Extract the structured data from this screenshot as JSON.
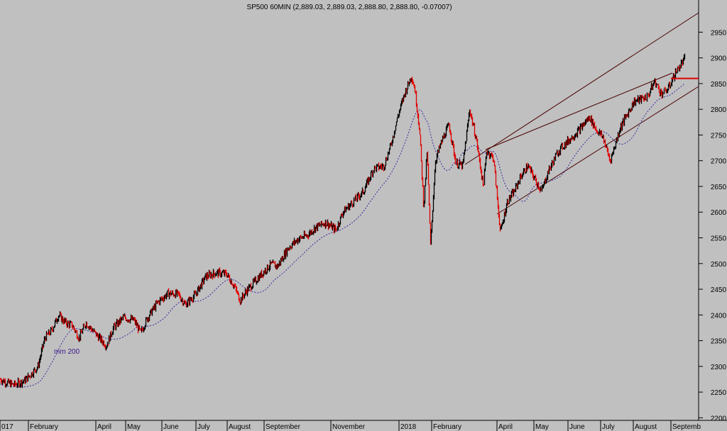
{
  "chart_data": {
    "type": "candlestick",
    "title": "SP500 60MIN (2,889.03, 2,889.03, 2,888.80, 2,888.80, -0.07007)",
    "y_ticks": [
      2200,
      2250,
      2300,
      2350,
      2400,
      2450,
      2500,
      2550,
      2600,
      2650,
      2700,
      2750,
      2800,
      2850,
      2900,
      2950
    ],
    "ylim": [
      2195,
      2985
    ],
    "x_labels": [
      "017",
      "February",
      "April",
      "May",
      "June",
      "July",
      "August",
      "September",
      "November",
      "2018",
      "February",
      "April",
      "May",
      "June",
      "July",
      "August",
      "Septemb"
    ],
    "ma_label": "mm 200",
    "support_level": 2860,
    "price_path": [
      [
        0.0,
        2275
      ],
      [
        0.01,
        2268
      ],
      [
        0.02,
        2264
      ],
      [
        0.035,
        2272
      ],
      [
        0.045,
        2285
      ],
      [
        0.055,
        2300
      ],
      [
        0.065,
        2355
      ],
      [
        0.075,
        2370
      ],
      [
        0.085,
        2400
      ],
      [
        0.095,
        2385
      ],
      [
        0.105,
        2380
      ],
      [
        0.115,
        2355
      ],
      [
        0.125,
        2385
      ],
      [
        0.14,
        2362
      ],
      [
        0.155,
        2340
      ],
      [
        0.165,
        2375
      ],
      [
        0.18,
        2395
      ],
      [
        0.195,
        2390
      ],
      [
        0.205,
        2365
      ],
      [
        0.215,
        2395
      ],
      [
        0.23,
        2425
      ],
      [
        0.245,
        2442
      ],
      [
        0.26,
        2440
      ],
      [
        0.27,
        2420
      ],
      [
        0.285,
        2440
      ],
      [
        0.3,
        2475
      ],
      [
        0.315,
        2482
      ],
      [
        0.33,
        2480
      ],
      [
        0.342,
        2455
      ],
      [
        0.35,
        2428
      ],
      [
        0.36,
        2448
      ],
      [
        0.375,
        2470
      ],
      [
        0.385,
        2485
      ],
      [
        0.395,
        2498
      ],
      [
        0.405,
        2495
      ],
      [
        0.42,
        2530
      ],
      [
        0.435,
        2548
      ],
      [
        0.448,
        2555
      ],
      [
        0.46,
        2570
      ],
      [
        0.475,
        2580
      ],
      [
        0.49,
        2565
      ],
      [
        0.5,
        2600
      ],
      [
        0.515,
        2620
      ],
      [
        0.53,
        2640
      ],
      [
        0.545,
        2685
      ],
      [
        0.56,
        2690
      ],
      [
        0.57,
        2730
      ],
      [
        0.58,
        2785
      ],
      [
        0.59,
        2830
      ],
      [
        0.6,
        2865
      ],
      [
        0.605,
        2840
      ],
      [
        0.612,
        2760
      ],
      [
        0.618,
        2610
      ],
      [
        0.623,
        2720
      ],
      [
        0.628,
        2535
      ],
      [
        0.635,
        2700
      ],
      [
        0.645,
        2740
      ],
      [
        0.655,
        2770
      ],
      [
        0.665,
        2695
      ],
      [
        0.675,
        2690
      ],
      [
        0.685,
        2800
      ],
      [
        0.695,
        2740
      ],
      [
        0.705,
        2650
      ],
      [
        0.71,
        2720
      ],
      [
        0.72,
        2705
      ],
      [
        0.73,
        2560
      ],
      [
        0.74,
        2620
      ],
      [
        0.75,
        2640
      ],
      [
        0.76,
        2670
      ],
      [
        0.77,
        2690
      ],
      [
        0.78,
        2665
      ],
      [
        0.79,
        2640
      ],
      [
        0.8,
        2680
      ],
      [
        0.815,
        2720
      ],
      [
        0.83,
        2740
      ],
      [
        0.845,
        2760
      ],
      [
        0.86,
        2785
      ],
      [
        0.87,
        2760
      ],
      [
        0.88,
        2745
      ],
      [
        0.89,
        2700
      ],
      [
        0.895,
        2720
      ],
      [
        0.905,
        2765
      ],
      [
        0.915,
        2790
      ],
      [
        0.925,
        2815
      ],
      [
        0.935,
        2820
      ],
      [
        0.945,
        2825
      ],
      [
        0.955,
        2855
      ],
      [
        0.965,
        2830
      ],
      [
        0.975,
        2840
      ],
      [
        0.985,
        2870
      ],
      [
        0.99,
        2880
      ],
      [
        1.0,
        2900
      ]
    ]
  }
}
